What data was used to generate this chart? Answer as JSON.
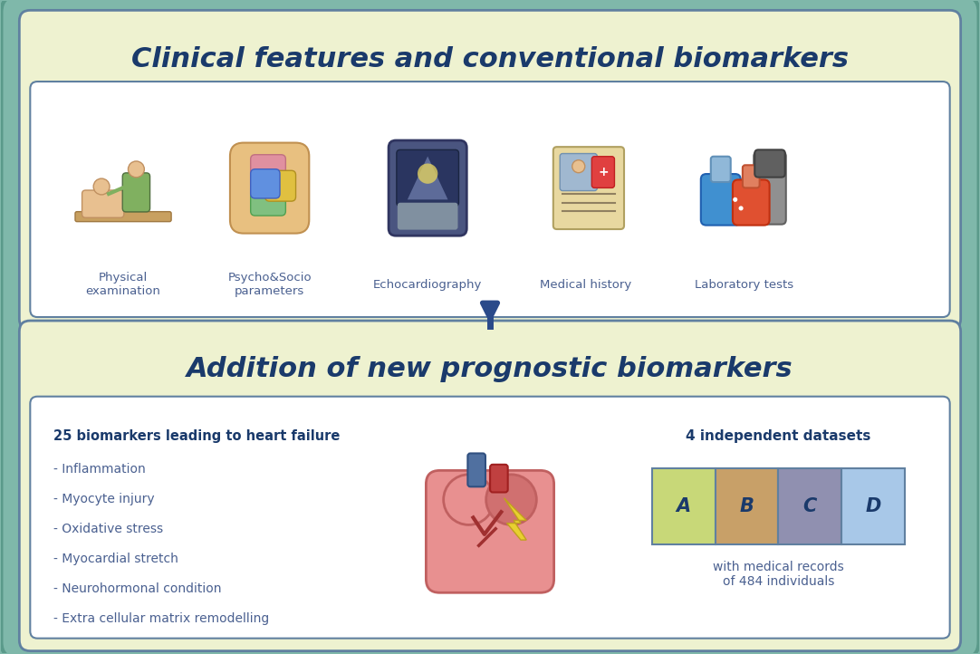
{
  "fig_width": 10.82,
  "fig_height": 7.22,
  "bg_outer": "#7fb8aa",
  "bg_top_section": "#eef2d0",
  "bg_top_content": "#ffffff",
  "bg_bottom_section": "#eef2d0",
  "bg_bottom_content": "#ffffff",
  "title_top": "Clinical features and conventional biomarkers",
  "title_bottom": "Addition of new prognostic biomarkers",
  "title_color": "#1a3a6b",
  "icons_labels": [
    "Physical\nexamination",
    "Psycho&Socio\nparameters",
    "Echocardiography",
    "Medical history",
    "Laboratory tests"
  ],
  "biomarkers_title": "25 biomarkers leading to heart failure",
  "biomarkers_list": [
    "- Inflammation",
    "- Myocyte injury",
    "- Oxidative stress",
    "- Myocardial stretch",
    "- Neurohormonal condition",
    "- Extra cellular matrix remodelling"
  ],
  "datasets_title": "4 independent datasets",
  "datasets_labels": [
    "A",
    "B",
    "C",
    "D"
  ],
  "datasets_colors": [
    "#c8d878",
    "#c8a068",
    "#9090b0",
    "#a8c8e8"
  ],
  "datasets_border": "#6080a0",
  "datasets_subtitle": "with medical records\nof 484 individuals",
  "arrow_color": "#2a4a8a",
  "label_color": "#4a6090",
  "biomarker_title_color": "#1a3a6b",
  "biomarker_list_color": "#4a6090",
  "outer_border_color": "#5a9a8a",
  "inner_border_color": "#6080a0",
  "section_border_color": "#6080a0"
}
